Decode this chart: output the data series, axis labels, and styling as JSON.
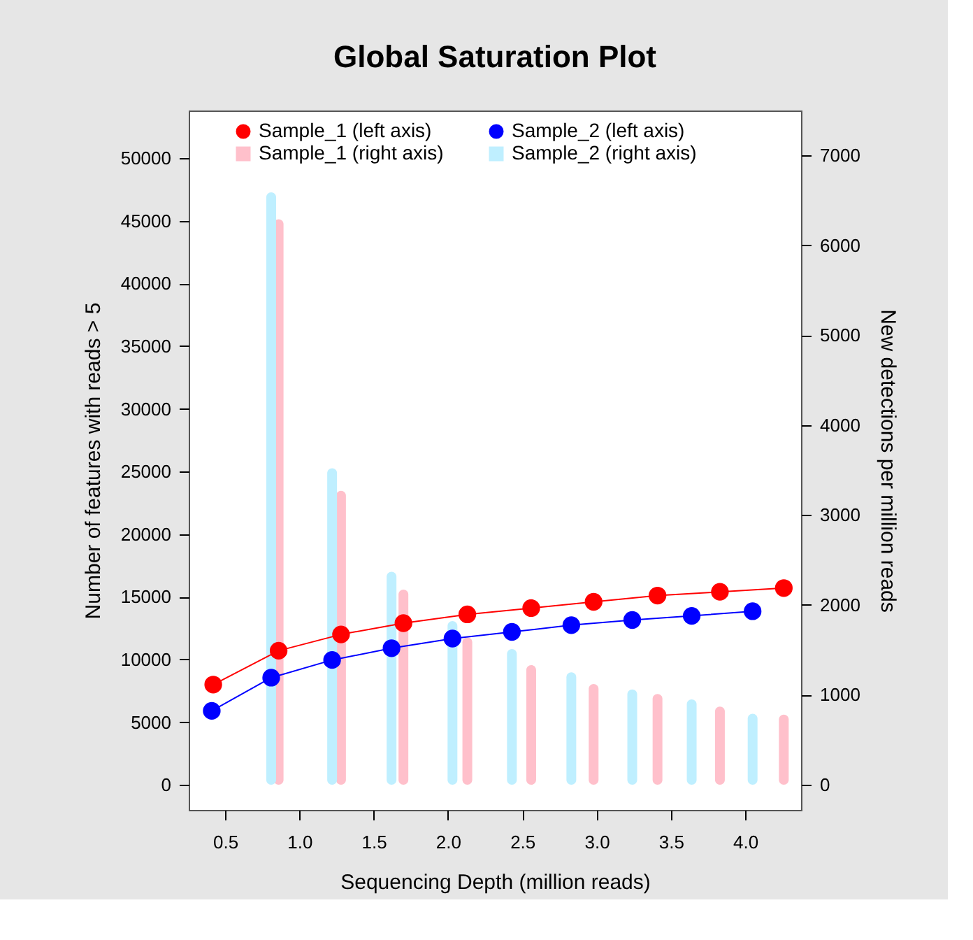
{
  "chart_data": {
    "type": "line",
    "title": "Global Saturation Plot",
    "xlabel": "Sequencing Depth (million reads)",
    "ylabel": "Number of features with reads > 5",
    "y2label": "New detections per million reads",
    "xlim": [
      0.255,
      4.376
    ],
    "xticks": [
      0.5,
      {
        "value": 1,
        "label": "1.0"
      },
      1.5,
      {
        "value": 2,
        "label": "2.0"
      },
      2.5,
      {
        "value": 3,
        "label": "3.0"
      },
      3.5,
      {
        "value": 4,
        "label": "4.0"
      }
    ],
    "ylim": [
      -2000,
      53800
    ],
    "yticks": [
      0,
      5000,
      10000,
      15000,
      20000,
      25000,
      30000,
      35000,
      40000,
      45000,
      50000
    ],
    "y2lim": [
      -280,
      7500
    ],
    "y2ticks": [
      0,
      1000,
      2000,
      3000,
      4000,
      5000,
      6000,
      7000
    ],
    "grid": false,
    "legend": "top",
    "marker": "circle",
    "line_style": "solid",
    "series": [
      {
        "name": "Sample_1 (left axis)",
        "color": "#ff0000",
        "x": [
          0.42,
          0.86,
          1.28,
          1.7,
          2.13,
          2.56,
          2.98,
          3.41,
          3.83,
          4.26
        ],
        "values": [
          8000,
          10700,
          12000,
          12900,
          13600,
          14100,
          14600,
          15100,
          15400,
          15700
        ]
      },
      {
        "name": "Sample_1 (right axis)",
        "type": "bar",
        "axis": "y2",
        "color": "#ffc0cb",
        "x": [
          0.86,
          1.28,
          1.7,
          2.13,
          2.56,
          2.98,
          3.41,
          3.83,
          4.26
        ],
        "values": [
          6290,
          3270,
          2170,
          1640,
          1330,
          1120,
          1010,
          870,
          780
        ]
      },
      {
        "name": "Sample_2 (left axis)",
        "color": "#0000ff",
        "x": [
          0.41,
          0.81,
          1.22,
          1.62,
          2.03,
          2.43,
          2.83,
          3.24,
          3.64,
          4.05
        ],
        "values": [
          5900,
          8550,
          9960,
          10900,
          11670,
          12200,
          12740,
          13150,
          13480,
          13850
        ]
      },
      {
        "name": "Sample_2 (right axis)",
        "type": "bar",
        "axis": "y2",
        "color": "#bfefff",
        "x": [
          0.81,
          1.22,
          1.62,
          2.03,
          2.43,
          2.83,
          3.24,
          3.64,
          4.05
        ],
        "values": [
          6590,
          3520,
          2370,
          1820,
          1510,
          1250,
          1060,
          950,
          790
        ]
      }
    ]
  }
}
